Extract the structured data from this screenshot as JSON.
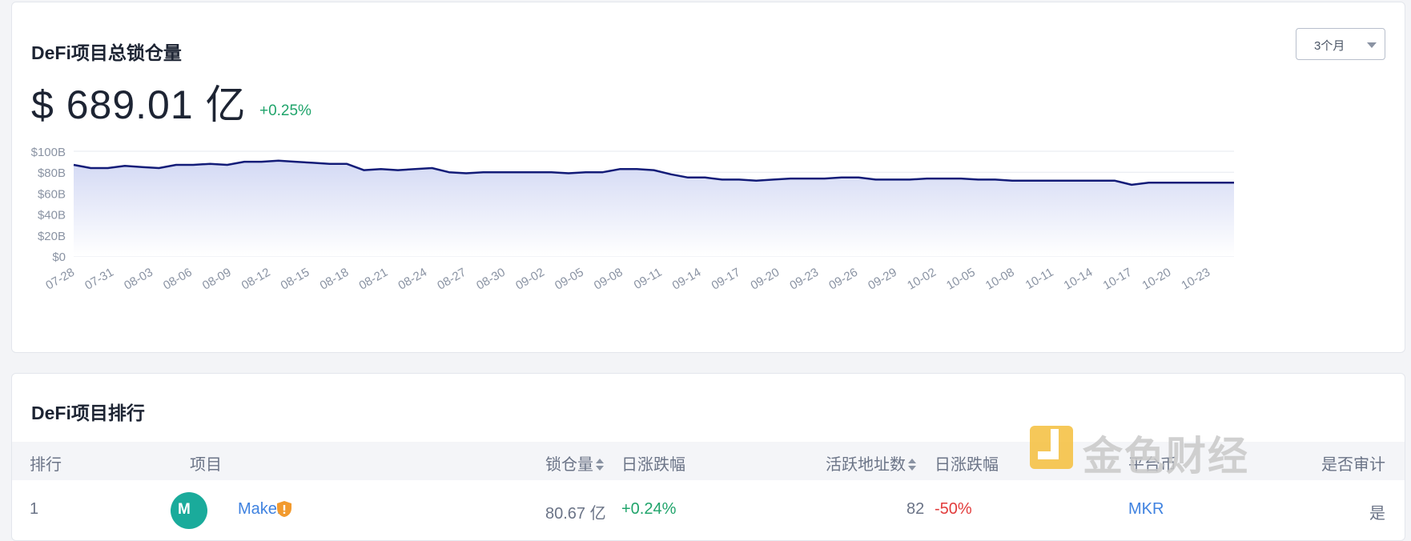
{
  "tvl": {
    "title": "DeFi项目总锁仓量",
    "value": "$ 689.01 亿",
    "change": "+0.25%",
    "range_selected": "3个月"
  },
  "chart_data": {
    "type": "area",
    "title": "",
    "xlabel": "",
    "ylabel": "",
    "ylim": [
      0,
      100
    ],
    "y_unit": "B USD",
    "y_ticks": [
      "$100B",
      "$80B",
      "$60B",
      "$40B",
      "$20B",
      "$0"
    ],
    "grid": true,
    "x_ticks": [
      "07-28",
      "07-31",
      "08-03",
      "08-06",
      "08-09",
      "08-12",
      "08-15",
      "08-18",
      "08-21",
      "08-24",
      "08-27",
      "08-30",
      "09-02",
      "09-05",
      "09-08",
      "09-11",
      "09-14",
      "09-17",
      "09-20",
      "09-23",
      "09-26",
      "09-29",
      "10-02",
      "10-05",
      "10-08",
      "10-11",
      "10-14",
      "10-17",
      "10-20",
      "10-23"
    ],
    "series": [
      {
        "values": [
          87,
          84,
          84,
          86,
          85,
          84,
          87,
          87,
          88,
          87,
          90,
          90,
          91,
          90,
          89,
          88,
          88,
          82,
          83,
          82,
          83,
          84,
          80,
          79,
          80,
          80,
          80,
          80,
          80,
          79,
          80,
          80,
          83,
          83,
          82,
          78,
          75,
          75,
          73,
          73,
          72,
          73,
          74,
          74,
          74,
          75,
          75,
          73,
          73,
          73,
          74,
          74,
          74,
          73,
          73,
          72,
          72,
          72,
          72,
          72,
          72,
          72,
          68,
          70,
          70,
          70,
          70,
          70,
          70
        ]
      }
    ],
    "colors": {
      "line": "#131c78",
      "fill_top": "#d3d9f4",
      "fill_bottom": "#ffffff",
      "grid": "#e6e8ef",
      "tick": "#8a93a3"
    }
  },
  "ranking": {
    "title": "DeFi项目排行",
    "headers": {
      "rank": "排行",
      "project": "项目",
      "tvl": "锁仓量",
      "tvl_change": "日涨跌幅",
      "active_addresses": "活跃地址数",
      "addr_change": "日涨跌幅",
      "token": "平台币",
      "audited": "是否审计"
    },
    "rows": [
      {
        "rank": "1",
        "logo_text": "M",
        "name": "Maker",
        "tvl": "80.67 亿",
        "tvl_change": "+0.24%",
        "active_addresses": "82",
        "addr_change": "-50%",
        "token": "MKR",
        "audited": "是"
      }
    ]
  },
  "watermark": {
    "text": "金色财经"
  }
}
